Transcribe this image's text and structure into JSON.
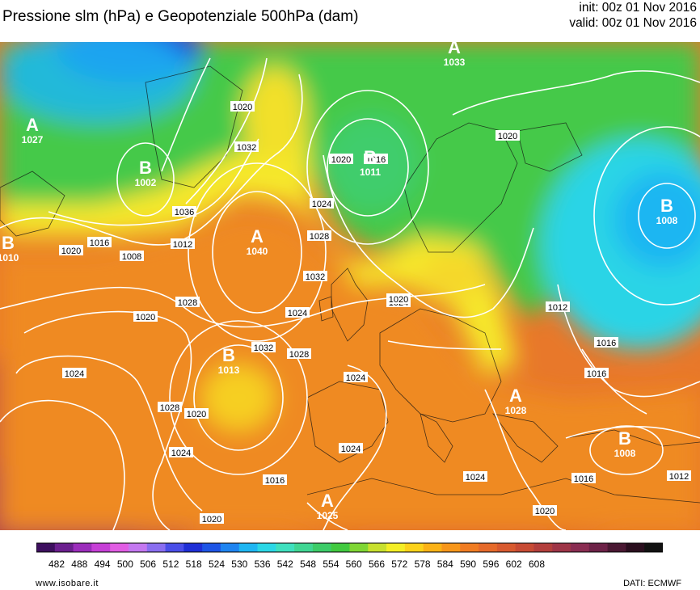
{
  "header": {
    "title": "Pressione slm (hPa) e Geopotenziale 500hPa (dam)",
    "init": "init: 00z 01 Nov 2016",
    "valid": "valid: 00z 01 Nov 2016"
  },
  "footer": {
    "site": "www.isobare.it",
    "source": "DATI: ECMWF"
  },
  "legend": {
    "ticks": [
      "482",
      "488",
      "494",
      "500",
      "506",
      "512",
      "518",
      "524",
      "530",
      "536",
      "542",
      "548",
      "554",
      "560",
      "566",
      "572",
      "578",
      "584",
      "590",
      "596",
      "602",
      "608"
    ],
    "colors": [
      "#3d0f5e",
      "#6b1f8e",
      "#9b2dbb",
      "#c63fd6",
      "#e15de3",
      "#c478f0",
      "#8a6ef0",
      "#4a4ee8",
      "#1f2fd6",
      "#1e55e6",
      "#1f84f0",
      "#1fb6f2",
      "#2bd7e6",
      "#3fe0be",
      "#40d693",
      "#3ccc68",
      "#41c93f",
      "#7fd634",
      "#c8e02e",
      "#f4ee25",
      "#fcd21a",
      "#fbb216",
      "#f7961a",
      "#f07c22",
      "#e66a2a",
      "#d85a2f",
      "#c84b34",
      "#b33f3c",
      "#9e3547",
      "#8a2d52",
      "#6d2247",
      "#4a1832",
      "#2a0e1e",
      "#111111"
    ]
  },
  "pressure_centers": [
    {
      "type": "A",
      "value": "1027"
    },
    {
      "type": "B",
      "value": "1002"
    },
    {
      "type": "A",
      "value": "1040"
    },
    {
      "type": "B",
      "value": "1011"
    },
    {
      "type": "A",
      "value": "1033"
    },
    {
      "type": "B",
      "value": "1008"
    },
    {
      "type": "B",
      "value": "1013"
    },
    {
      "type": "B",
      "value": "1010"
    },
    {
      "type": "A",
      "value": "1025"
    },
    {
      "type": "A",
      "value": "1028"
    },
    {
      "type": "B",
      "value": "1008"
    }
  ],
  "isobar_labels": [
    "1020",
    "1032",
    "1036",
    "1012",
    "1016",
    "1008",
    "1020",
    "1024",
    "1028",
    "1024",
    "1028",
    "1032",
    "1020",
    "1016",
    "1020",
    "1024",
    "1032",
    "1028",
    "1024",
    "1024",
    "1020",
    "1028",
    "1024",
    "1020",
    "1016",
    "1020",
    "1024",
    "1024",
    "1020",
    "1016",
    "1012",
    "1016",
    "1016",
    "1012",
    "1020"
  ],
  "colors": {
    "high_heights": "#e3702c",
    "low_heights": "#1fb6f2",
    "isobar": "#ffffff"
  }
}
